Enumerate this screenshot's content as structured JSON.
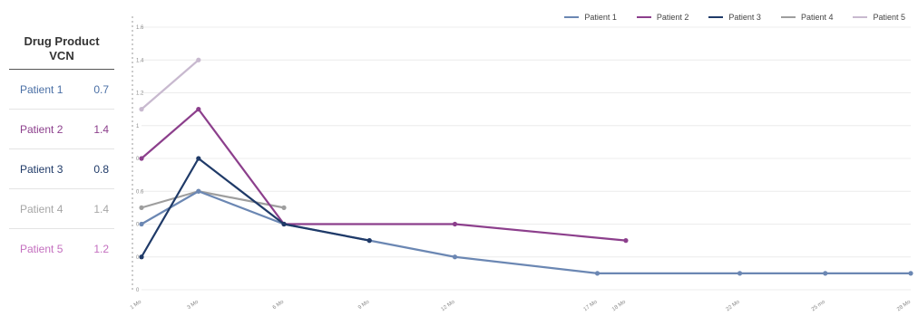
{
  "table": {
    "title_line1": "Drug Product",
    "title_line2": "VCN",
    "rows": [
      {
        "name": "Patient 1",
        "value": "0.7",
        "color": "#4a6fa5"
      },
      {
        "name": "Patient 2",
        "value": "1.4",
        "color": "#8c3f8c"
      },
      {
        "name": "Patient 3",
        "value": "0.8",
        "color": "#1f3a68"
      },
      {
        "name": "Patient 4",
        "value": "1.4",
        "color": "#a6a6a6"
      },
      {
        "name": "Patient 5",
        "value": "1.2",
        "color": "#c46fbf"
      }
    ]
  },
  "chart_data": {
    "type": "line",
    "x_labels": [
      "1 Mo",
      "3 Mo",
      "6 Mo",
      "9 Mo",
      "12 Mo",
      "17 Mo",
      "18 Mo",
      "22 Mo",
      "25 mo",
      "28 Mo"
    ],
    "x_months": [
      1,
      3,
      6,
      9,
      12,
      17,
      18,
      22,
      25,
      28
    ],
    "ylim": [
      0,
      1.6
    ],
    "yticks": [
      "0",
      "0.2",
      "0.4",
      "0.6",
      "0.8",
      "1",
      "1.2",
      "1.4",
      "1.6"
    ],
    "legend_position": "top-right",
    "series": [
      {
        "name": "Patient 1",
        "color": "#6b87b3",
        "points": [
          [
            1,
            0.4
          ],
          [
            3,
            0.6
          ],
          [
            6,
            0.4
          ],
          [
            9,
            0.3
          ],
          [
            12,
            0.2
          ],
          [
            17,
            0.1
          ],
          [
            22,
            0.1
          ],
          [
            25,
            0.1
          ],
          [
            28,
            0.1
          ]
        ]
      },
      {
        "name": "Patient 2",
        "color": "#8c3f8c",
        "points": [
          [
            1,
            0.8
          ],
          [
            3,
            1.1
          ],
          [
            6,
            0.4
          ],
          [
            12,
            0.4
          ],
          [
            18,
            0.3
          ]
        ]
      },
      {
        "name": "Patient 3",
        "color": "#1f3a68",
        "points": [
          [
            1,
            0.2
          ],
          [
            3,
            0.8
          ],
          [
            6,
            0.4
          ],
          [
            9,
            0.3
          ]
        ]
      },
      {
        "name": "Patient 4",
        "color": "#9e9e9e",
        "points": [
          [
            1,
            0.5
          ],
          [
            3,
            0.6
          ],
          [
            6,
            0.5
          ]
        ]
      },
      {
        "name": "Patient 5",
        "color": "#c8b9cf",
        "points": [
          [
            1,
            1.1
          ],
          [
            3,
            1.4
          ]
        ]
      }
    ]
  }
}
